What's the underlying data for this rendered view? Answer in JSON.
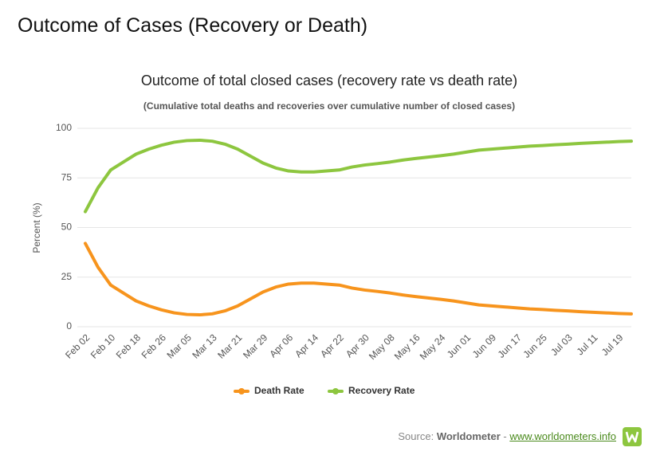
{
  "header": {
    "title": "Outcome of Cases (Recovery or Death)"
  },
  "chart_data": {
    "type": "line",
    "title": "Outcome of total closed cases (recovery rate vs death rate)",
    "subtitle": "(Cumulative total deaths and recoveries over cumulative number of closed cases)",
    "y_label": "Percent (%)",
    "categories": [
      "Feb 02",
      null,
      "Feb 10",
      null,
      "Feb 18",
      null,
      "Feb 26",
      null,
      "Mar 05",
      null,
      "Mar 13",
      null,
      "Mar 21",
      null,
      "Mar 29",
      null,
      "Apr 06",
      null,
      "Apr 14",
      null,
      "Apr 22",
      null,
      "Apr 30",
      null,
      "May 08",
      null,
      "May 16",
      null,
      "May 24",
      null,
      "Jun 01",
      null,
      "Jun 09",
      null,
      "Jun 17",
      null,
      "Jun 25",
      null,
      "Jul 03",
      null,
      "Jul 11",
      null,
      "Jul 19",
      null
    ],
    "series": [
      {
        "name": "Death Rate",
        "color": "#f7941d",
        "values": [
          42,
          30,
          21,
          17,
          13,
          10.5,
          8.5,
          7,
          6.2,
          6,
          6.5,
          8,
          10.5,
          14,
          17.5,
          20,
          21.5,
          22,
          22,
          21.5,
          21,
          19.5,
          18.5,
          17.8,
          17,
          16,
          15.2,
          14.5,
          13.8,
          13,
          12,
          11,
          10.5,
          10,
          9.5,
          9,
          8.7,
          8.3,
          8,
          7.6,
          7.3,
          7,
          6.7,
          6.5
        ]
      },
      {
        "name": "Recovery Rate",
        "color": "#8dc63f",
        "values": [
          58,
          70,
          79,
          83,
          87,
          89.5,
          91.5,
          93,
          93.8,
          94,
          93.5,
          92,
          89.5,
          86,
          82.5,
          80,
          78.5,
          78,
          78,
          78.5,
          79,
          80.5,
          81.5,
          82.2,
          83,
          84,
          84.8,
          85.5,
          86.2,
          87,
          88,
          89,
          89.5,
          90,
          90.5,
          91,
          91.3,
          91.7,
          92,
          92.4,
          92.7,
          93,
          93.3,
          93.5
        ]
      }
    ],
    "ylim": [
      0,
      100
    ],
    "yticks": [
      0,
      25,
      50,
      75,
      100
    ],
    "grid": true,
    "legend": "bottom"
  },
  "source": {
    "label": "Source:",
    "name": "Worldometer",
    "separator": "-",
    "url": "www.worldometers.info"
  }
}
